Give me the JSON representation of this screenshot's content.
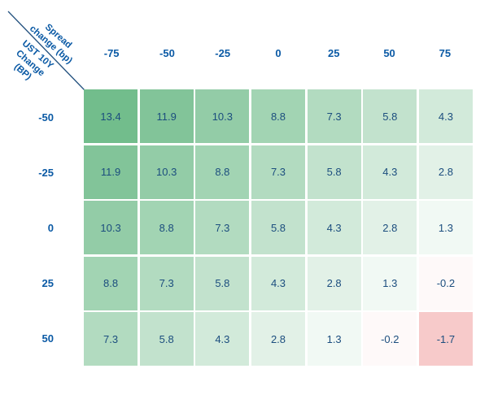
{
  "colors": {
    "header_text": "#0b5aa5",
    "cell_text": "#1b4d7e",
    "diagonal_line": "#24527f",
    "background": "#ffffff"
  },
  "corner": {
    "x_axis_title_lines": [
      "Spread",
      "change (bp)"
    ],
    "y_axis_title_lines": [
      "UST 10Y",
      "Change",
      "(BP)"
    ]
  },
  "chart_data": {
    "type": "heatmap",
    "title": "",
    "xlabel": "Spread change (bp)",
    "ylabel": "UST 10Y Change (BP)",
    "columns": [
      "-75",
      "-50",
      "-25",
      "0",
      "25",
      "50",
      "75"
    ],
    "rows": [
      "-50",
      "-25",
      "0",
      "25",
      "50"
    ],
    "values": [
      [
        13.4,
        11.9,
        10.3,
        8.8,
        7.3,
        5.8,
        4.3
      ],
      [
        11.9,
        10.3,
        8.8,
        7.3,
        5.8,
        4.3,
        2.8
      ],
      [
        10.3,
        8.8,
        7.3,
        5.8,
        4.3,
        2.8,
        1.3
      ],
      [
        8.8,
        7.3,
        5.8,
        4.3,
        2.8,
        1.3,
        -0.2
      ],
      [
        7.3,
        5.8,
        4.3,
        2.8,
        1.3,
        -0.2,
        -1.7
      ]
    ],
    "value_decimals": 1,
    "color_scale": {
      "positive_max_color": "#72bd8c",
      "zero_color": "#ffffff",
      "negative_min_color": "#f7caca",
      "domain_max": 13.4,
      "domain_min": -1.7
    },
    "legend": "none",
    "grid_gap_color": "#ffffff"
  }
}
